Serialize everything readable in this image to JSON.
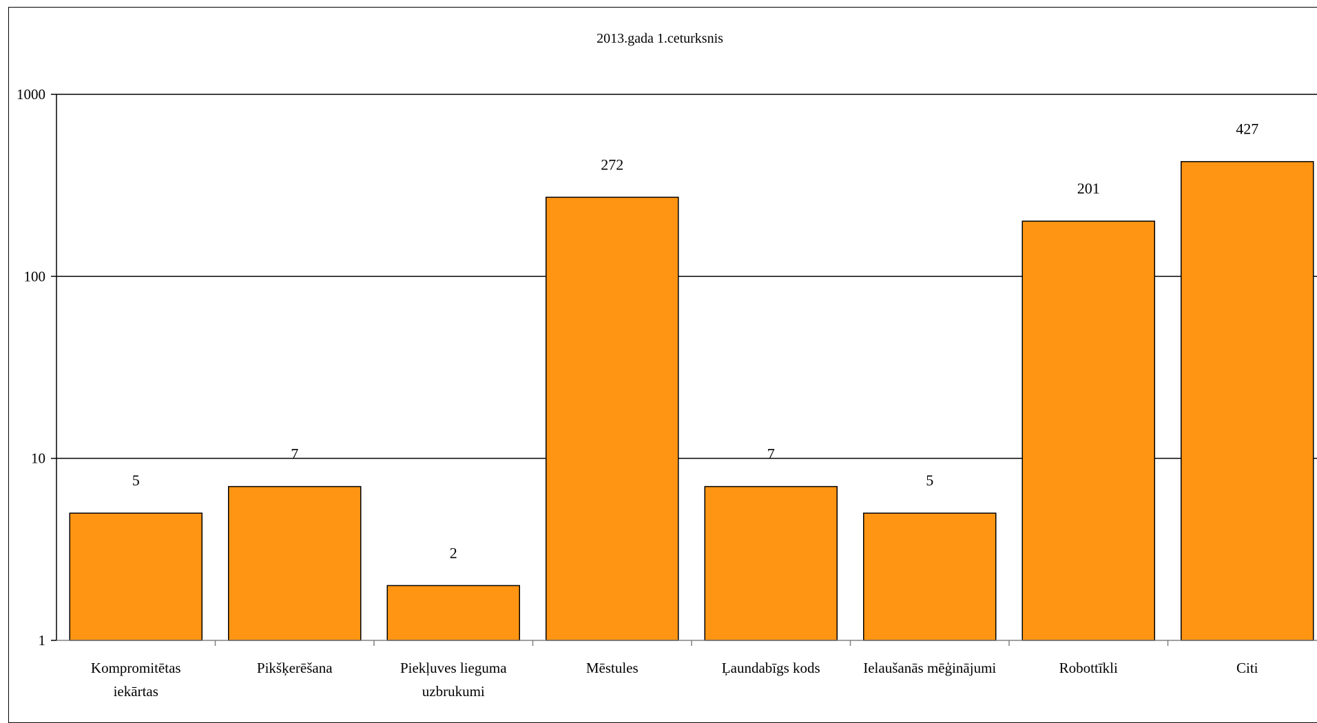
{
  "chart_data": {
    "type": "bar",
    "title": "2013.gada 1.ceturksnis",
    "xlabel": "",
    "ylabel": "",
    "scale": "log",
    "ylim": [
      1,
      1000
    ],
    "yticks": [
      "1",
      "10",
      "100",
      "1000"
    ],
    "grid": true,
    "legend": "none",
    "categories": [
      [
        "Kompromitētas",
        "iekārtas"
      ],
      [
        "Pikšķerēšana"
      ],
      [
        "Piekļuves lieguma",
        "uzbrukumi"
      ],
      [
        "Mēstules"
      ],
      [
        "Ļaundabīgs kods"
      ],
      [
        "Ielaušanās mēģinājumi"
      ],
      [
        "Robottīkli"
      ],
      [
        "Citi"
      ]
    ],
    "values": [
      5,
      7,
      2,
      272,
      7,
      5,
      201,
      427
    ],
    "data_labels": [
      "5",
      "7",
      "2",
      "272",
      "7",
      "5",
      "201",
      "427"
    ],
    "colors": {
      "bar": "#FF9512",
      "bar_edge": "#000000",
      "grid": "#000000"
    }
  }
}
